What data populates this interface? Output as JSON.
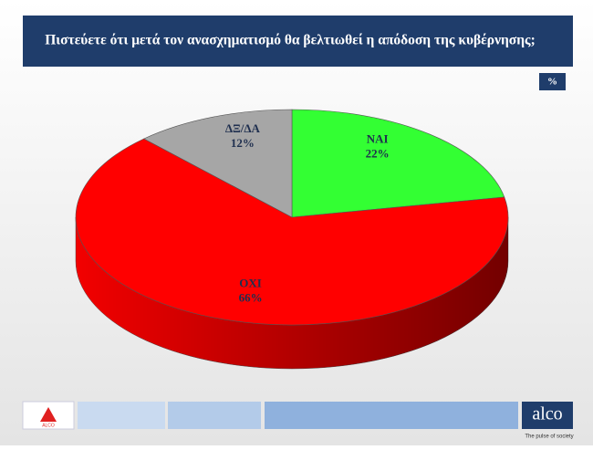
{
  "chart_data": {
    "type": "pie3d",
    "title": "Πιστεύετε ότι μετά τον ανασχηματισμό θα βελτιωθεί η απόδοση της κυβέρνησης;",
    "unit": "%",
    "categories": [
      "ΝΑΙ",
      "ΟΧΙ",
      "ΔΞ/ΔΑ"
    ],
    "values": [
      22,
      66,
      12
    ],
    "value_labels": [
      "22%",
      "66%",
      "12%"
    ],
    "colors": [
      "#33ff33",
      "#ff0000",
      "#a6a6a6"
    ]
  },
  "footer": {
    "brand": "alco",
    "tagline": "The pulse of society",
    "badge": "ALCO"
  }
}
